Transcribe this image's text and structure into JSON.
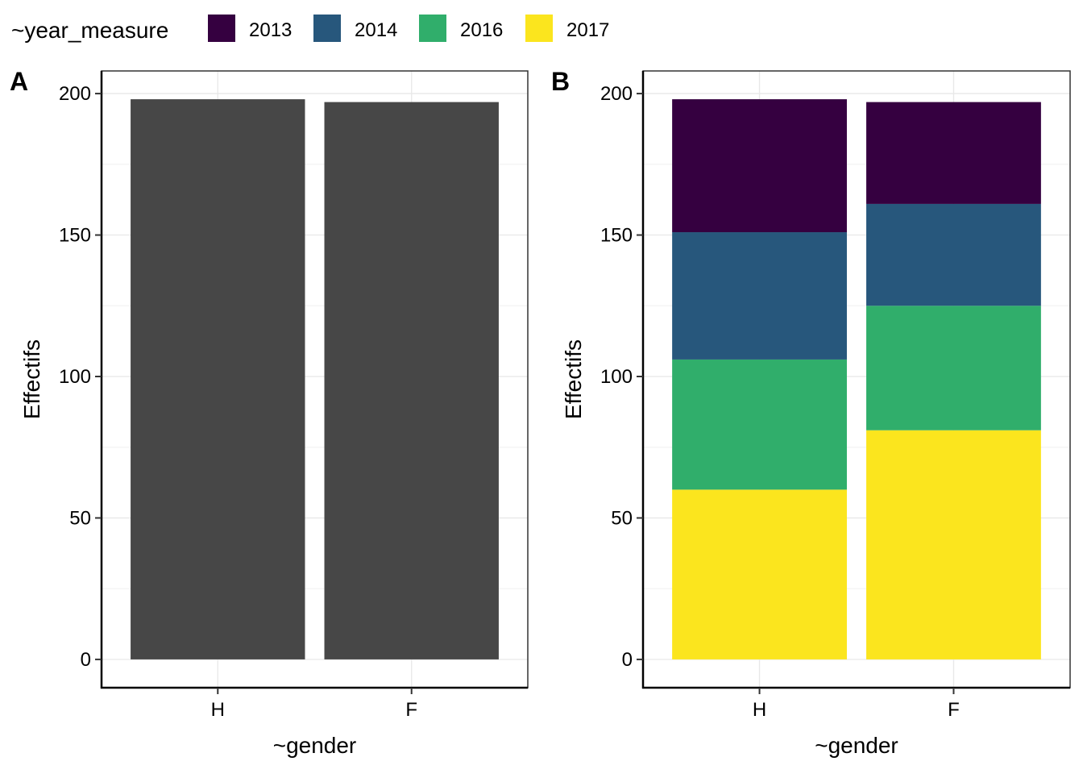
{
  "legend": {
    "title": "~year_measure",
    "items": [
      {
        "label": "2013",
        "color": "#350040"
      },
      {
        "label": "2014",
        "color": "#27577C"
      },
      {
        "label": "2016",
        "color": "#30AE6B"
      },
      {
        "label": "2017",
        "color": "#FBE51E"
      }
    ]
  },
  "chart_data": [
    {
      "type": "bar",
      "tag": "A",
      "categories": [
        "H",
        "F"
      ],
      "values": [
        198,
        197
      ],
      "bar_color": "#474747",
      "xlabel": "~gender",
      "ylabel": "Effectifs",
      "ylim": [
        -10,
        208
      ],
      "yticks": [
        0,
        50,
        100,
        150,
        200
      ],
      "grid": true
    },
    {
      "type": "bar",
      "stacked": true,
      "tag": "B",
      "categories": [
        "H",
        "F"
      ],
      "series": [
        {
          "name": "2017",
          "values": [
            60,
            81
          ],
          "color": "#FBE51E"
        },
        {
          "name": "2016",
          "values": [
            46,
            44
          ],
          "color": "#30AE6B"
        },
        {
          "name": "2014",
          "values": [
            45,
            36
          ],
          "color": "#27577C"
        },
        {
          "name": "2013",
          "values": [
            47,
            36
          ],
          "color": "#350040"
        }
      ],
      "xlabel": "~gender",
      "ylabel": "Effectifs",
      "ylim": [
        -10,
        208
      ],
      "yticks": [
        0,
        50,
        100,
        150,
        200
      ],
      "grid": true
    }
  ]
}
